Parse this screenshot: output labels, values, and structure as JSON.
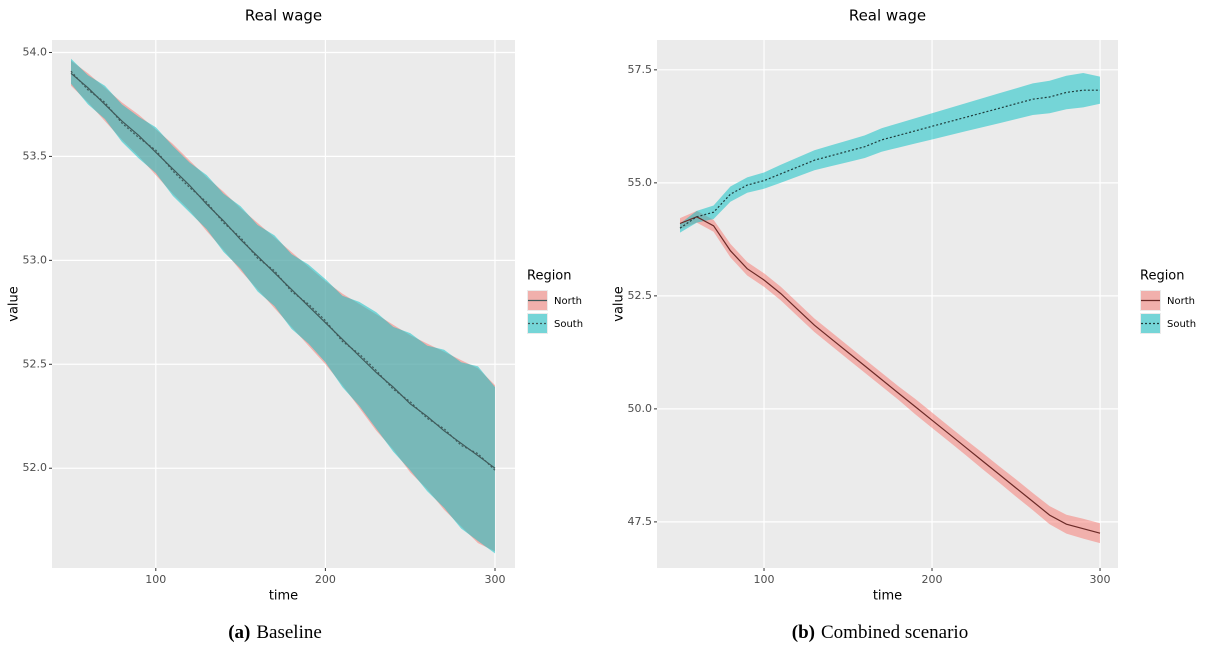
{
  "chart_data": [
    {
      "type": "line",
      "title": "Real wage",
      "x_label": "time",
      "y_label": "value",
      "caption_label": "(a)",
      "caption": "Baseline",
      "legend_title": "Region",
      "legend": "right",
      "grid": true,
      "fill_opacity": 0.5,
      "x": [
        50,
        60,
        70,
        80,
        90,
        100,
        110,
        120,
        130,
        140,
        150,
        160,
        170,
        180,
        190,
        200,
        210,
        220,
        230,
        240,
        250,
        260,
        270,
        280,
        290,
        300
      ],
      "xlim": [
        38.8,
        311.8
      ],
      "xticks": [
        100,
        200,
        300
      ],
      "ylim": [
        51.52,
        54.06
      ],
      "yticks": [
        {
          "value": 52,
          "label": "52.0"
        },
        52.5,
        {
          "value": 53,
          "label": "53.0"
        },
        53.5,
        {
          "value": 54,
          "label": "54.0"
        }
      ],
      "series": [
        {
          "name": "North",
          "color": "#F8766D",
          "line_color": "#3f5a5a",
          "linetype": "solid",
          "values": [
            53.9,
            53.83,
            53.75,
            53.67,
            53.6,
            53.52,
            53.44,
            53.36,
            53.27,
            53.19,
            53.1,
            53.02,
            52.94,
            52.86,
            52.78,
            52.7,
            52.62,
            52.54,
            52.46,
            52.39,
            52.31,
            52.25,
            52.18,
            52.12,
            52.06,
            52.0
          ],
          "lower": [
            53.84,
            53.76,
            53.67,
            53.58,
            53.5,
            53.41,
            53.32,
            53.24,
            53.14,
            53.05,
            52.95,
            52.86,
            52.77,
            52.68,
            52.59,
            52.5,
            52.4,
            52.29,
            52.18,
            52.09,
            51.98,
            51.9,
            51.8,
            51.72,
            51.64,
            51.6
          ],
          "upper": [
            53.96,
            53.9,
            53.83,
            53.76,
            53.7,
            53.63,
            53.56,
            53.48,
            53.4,
            53.33,
            53.25,
            53.18,
            53.11,
            53.04,
            52.97,
            52.9,
            52.84,
            52.79,
            52.74,
            52.69,
            52.64,
            52.6,
            52.56,
            52.52,
            52.48,
            52.4
          ]
        },
        {
          "name": "South",
          "color": "#00BFC4",
          "line_color": "#3f5a5a",
          "linetype": "dashed",
          "values": [
            53.91,
            53.82,
            53.76,
            53.66,
            53.59,
            53.53,
            53.43,
            53.35,
            53.28,
            53.18,
            53.11,
            53.01,
            52.95,
            52.85,
            52.79,
            52.71,
            52.61,
            52.55,
            52.47,
            52.38,
            52.32,
            52.24,
            52.19,
            52.11,
            52.07,
            51.99
          ],
          "lower": [
            53.85,
            53.75,
            53.68,
            53.57,
            53.49,
            53.42,
            53.31,
            53.23,
            53.15,
            53.04,
            52.96,
            52.85,
            52.78,
            52.67,
            52.6,
            52.51,
            52.39,
            52.3,
            52.19,
            52.08,
            51.99,
            51.89,
            51.81,
            51.71,
            51.65,
            51.59
          ],
          "upper": [
            53.97,
            53.89,
            53.84,
            53.75,
            53.69,
            53.64,
            53.55,
            53.47,
            53.41,
            53.32,
            53.26,
            53.17,
            53.12,
            53.03,
            52.98,
            52.91,
            52.83,
            52.8,
            52.75,
            52.68,
            52.65,
            52.59,
            52.57,
            52.51,
            52.49,
            52.39
          ]
        }
      ]
    },
    {
      "type": "line",
      "title": "Real wage",
      "x_label": "time",
      "y_label": "value",
      "caption_label": "(b)",
      "caption": "Combined scenario",
      "legend_title": "Region",
      "legend": "right",
      "grid": true,
      "fill_opacity": 0.5,
      "x": [
        50,
        60,
        70,
        80,
        90,
        100,
        110,
        120,
        130,
        140,
        150,
        160,
        170,
        180,
        190,
        200,
        210,
        220,
        230,
        240,
        250,
        260,
        270,
        280,
        290,
        300
      ],
      "xlim": [
        36.3,
        310.7
      ],
      "xticks": [
        100,
        200,
        300
      ],
      "ylim": [
        46.48,
        58.16
      ],
      "yticks": [
        47.5,
        {
          "value": 50,
          "label": "50.0"
        },
        52.5,
        {
          "value": 55,
          "label": "55.0"
        },
        57.5
      ],
      "series": [
        {
          "name": "North",
          "color": "#F8766D",
          "line_color": "#6b2a27",
          "linetype": "solid",
          "values": [
            54.1,
            54.25,
            54.05,
            53.5,
            53.1,
            52.85,
            52.55,
            52.2,
            51.85,
            51.55,
            51.25,
            50.95,
            50.65,
            50.35,
            50.05,
            49.75,
            49.45,
            49.15,
            48.85,
            48.55,
            48.25,
            47.95,
            47.65,
            47.45,
            47.35,
            47.25
          ],
          "lower": [
            53.98,
            54.12,
            53.92,
            53.35,
            52.95,
            52.7,
            52.4,
            52.05,
            51.7,
            51.4,
            51.1,
            50.8,
            50.5,
            50.2,
            49.88,
            49.58,
            49.28,
            48.98,
            48.67,
            48.37,
            48.06,
            47.76,
            47.45,
            47.24,
            47.13,
            47.03
          ],
          "upper": [
            54.22,
            54.38,
            54.18,
            53.65,
            53.25,
            53.0,
            52.7,
            52.35,
            52.0,
            51.7,
            51.4,
            51.1,
            50.8,
            50.5,
            50.22,
            49.92,
            49.62,
            49.32,
            49.03,
            48.73,
            48.44,
            48.14,
            47.85,
            47.66,
            47.57,
            47.47
          ]
        },
        {
          "name": "South",
          "color": "#00BFC4",
          "line_color": "#1f3c3c",
          "linetype": "dashed",
          "values": [
            54.0,
            54.25,
            54.35,
            54.75,
            54.95,
            55.05,
            55.2,
            55.35,
            55.5,
            55.6,
            55.7,
            55.8,
            55.95,
            56.05,
            56.15,
            56.25,
            56.35,
            56.45,
            56.55,
            56.65,
            56.75,
            56.85,
            56.9,
            57.0,
            57.05,
            57.05
          ],
          "lower": [
            53.9,
            54.12,
            54.2,
            54.58,
            54.78,
            54.87,
            55.0,
            55.14,
            55.28,
            55.37,
            55.46,
            55.55,
            55.69,
            55.78,
            55.87,
            55.96,
            56.05,
            56.14,
            56.23,
            56.32,
            56.41,
            56.5,
            56.54,
            56.63,
            56.67,
            56.75
          ],
          "upper": [
            54.1,
            54.38,
            54.5,
            54.92,
            55.12,
            55.23,
            55.4,
            55.56,
            55.72,
            55.83,
            55.94,
            56.05,
            56.21,
            56.32,
            56.43,
            56.54,
            56.65,
            56.76,
            56.87,
            56.98,
            57.09,
            57.2,
            57.26,
            57.37,
            57.43,
            57.35
          ]
        }
      ]
    }
  ]
}
